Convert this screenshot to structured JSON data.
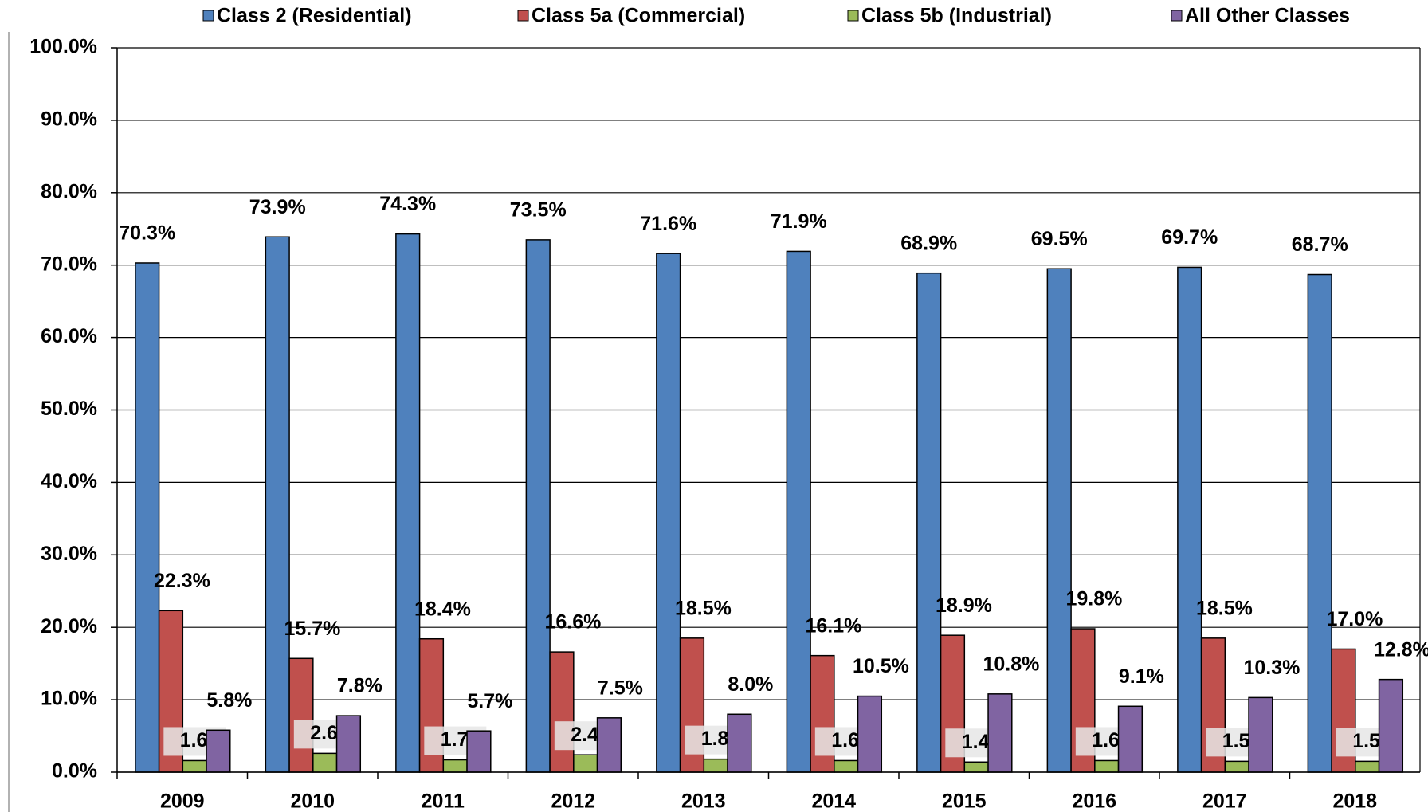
{
  "chart_data": {
    "type": "bar",
    "categories": [
      "2009",
      "2010",
      "2011",
      "2012",
      "2013",
      "2014",
      "2015",
      "2016",
      "2017",
      "2018"
    ],
    "series": [
      {
        "name": "Class 2 (Residential)",
        "color": "#4f81bd",
        "values": [
          70.3,
          73.9,
          74.3,
          73.5,
          71.6,
          71.9,
          68.9,
          69.5,
          69.7,
          68.7
        ],
        "value_labels": [
          "70.3%",
          "73.9%",
          "74.3%",
          "73.5%",
          "71.6%",
          "71.9%",
          "68.9%",
          "69.5%",
          "69.7%",
          "68.7%"
        ]
      },
      {
        "name": "Class 5a (Commercial)",
        "color": "#c0504d",
        "values": [
          22.3,
          15.7,
          18.4,
          16.6,
          18.5,
          16.1,
          18.9,
          19.8,
          18.5,
          17.0
        ],
        "value_labels": [
          "22.3%",
          "15.7%",
          "18.4%",
          "16.6%",
          "18.5%",
          "16.1%",
          "18.9%",
          "19.8%",
          "18.5%",
          "17.0%"
        ]
      },
      {
        "name": "Class 5b (Industrial)",
        "color": "#9bbb59",
        "values": [
          1.6,
          2.6,
          1.7,
          2.4,
          1.8,
          1.6,
          1.4,
          1.6,
          1.5,
          1.5
        ],
        "value_labels": [
          "1.6%",
          "2.6%",
          "1.7%",
          "2.4%",
          "1.8%",
          "1.6%",
          "1.4%",
          "1.6%",
          "1.5%",
          "1.5%"
        ]
      },
      {
        "name": "All Other Classes",
        "color": "#8064a2",
        "values": [
          5.8,
          7.8,
          5.7,
          7.5,
          8.0,
          10.5,
          10.8,
          9.1,
          10.3,
          12.8
        ],
        "value_labels": [
          "5.8%",
          "7.8%",
          "5.7%",
          "7.5%",
          "8.0%",
          "10.5%",
          "10.8%",
          "9.1%",
          "10.3%",
          "12.8%"
        ]
      }
    ],
    "ylim": [
      0,
      100
    ],
    "yticks": [
      {
        "value": 0,
        "label": "0.0%"
      },
      {
        "value": 10,
        "label": "10.0%"
      },
      {
        "value": 20,
        "label": "20.0%"
      },
      {
        "value": 30,
        "label": "30.0%"
      },
      {
        "value": 40,
        "label": "40.0%"
      },
      {
        "value": 50,
        "label": "50.0%"
      },
      {
        "value": 60,
        "label": "60.0%"
      },
      {
        "value": 70,
        "label": "70.0%"
      },
      {
        "value": 80,
        "label": "80.0%"
      },
      {
        "value": 90,
        "label": "90.0%"
      },
      {
        "value": 100,
        "label": "100.0%"
      }
    ],
    "grid": true,
    "legend": "top"
  }
}
